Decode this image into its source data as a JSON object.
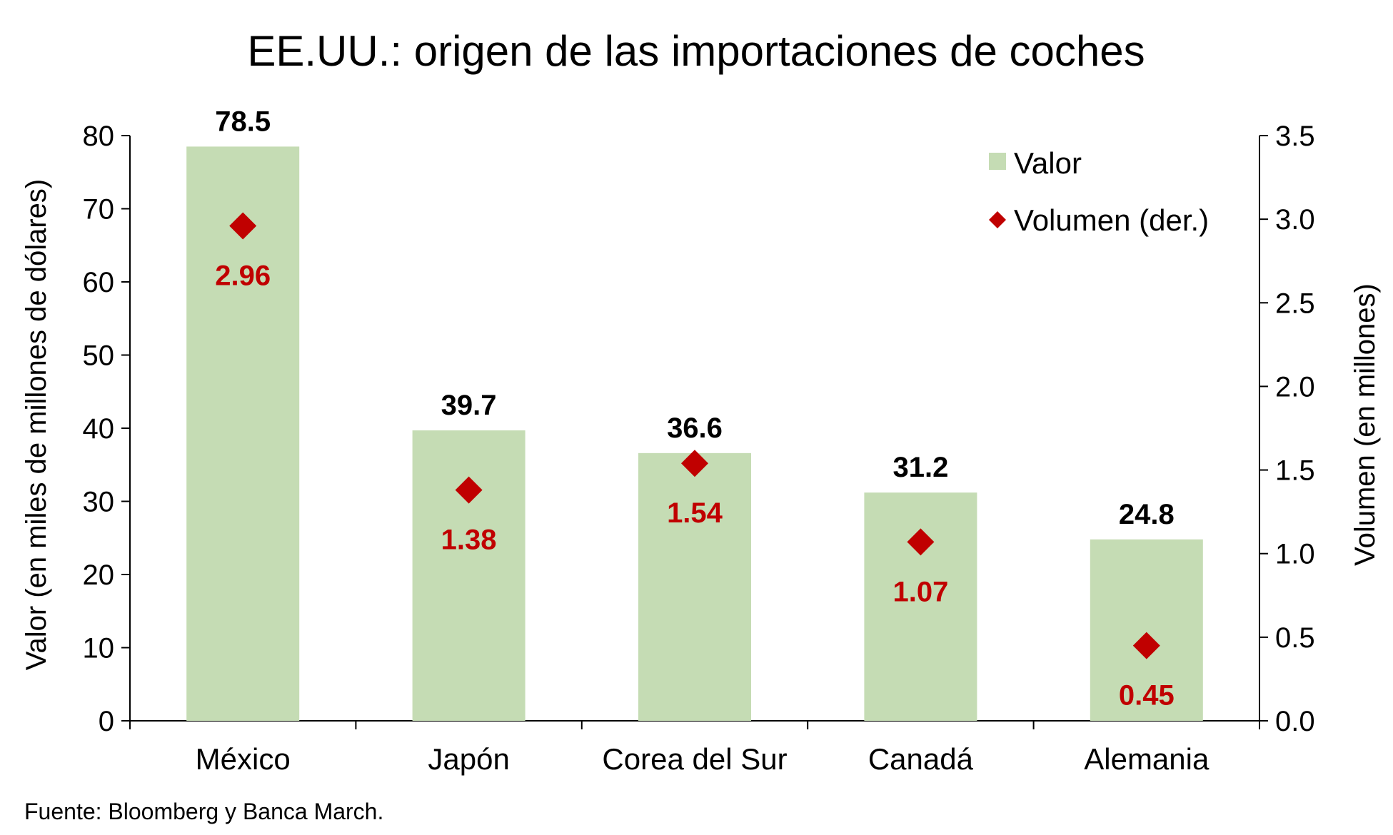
{
  "chart_data": {
    "type": "bar",
    "title": "EE.UU.: origen de las importaciones de coches",
    "categories": [
      "México",
      "Japón",
      "Corea del Sur",
      "Canadá",
      "Alemania"
    ],
    "series": [
      {
        "name": "Valor",
        "kind": "bar",
        "axis": "left",
        "color": "#c5dcb4",
        "values": [
          78.5,
          39.7,
          36.6,
          31.2,
          24.8
        ],
        "labels": [
          "78.5",
          "39.7",
          "36.6",
          "31.2",
          "24.8"
        ]
      },
      {
        "name": "Volumen (der.)",
        "kind": "scatter",
        "marker": "diamond",
        "axis": "right",
        "color": "#c00000",
        "values": [
          2.96,
          1.38,
          1.54,
          1.07,
          0.45
        ],
        "labels": [
          "2.96",
          "1.38",
          "1.54",
          "1.07",
          "0.45"
        ]
      }
    ],
    "ylabel": "Valor (en miles de millones de dólares)",
    "ylim": [
      0,
      80
    ],
    "yticks": [
      "0",
      "10",
      "20",
      "30",
      "40",
      "50",
      "60",
      "70",
      "80"
    ],
    "y2label": "Volumen (en millones)",
    "y2lim": [
      0,
      3.5
    ],
    "y2ticks": [
      "0.0",
      "0.5",
      "1.0",
      "1.5",
      "2.0",
      "2.5",
      "3.0",
      "3.5"
    ],
    "grid": false,
    "legend_position": "top-right"
  },
  "source": "Fuente: Bloomberg y Banca March."
}
